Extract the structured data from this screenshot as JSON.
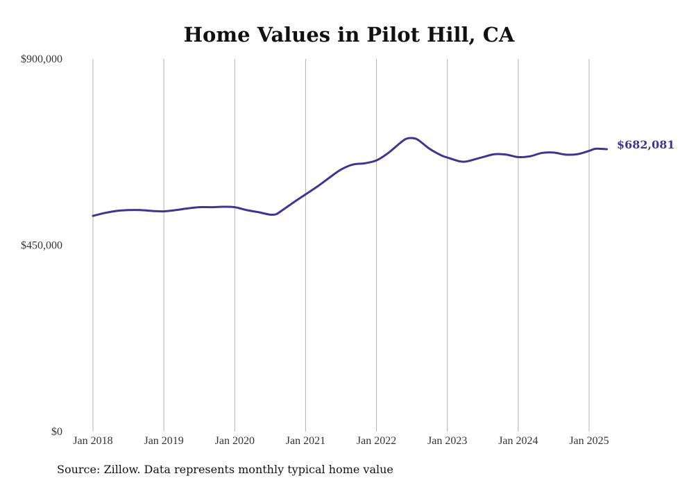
{
  "chart_data": {
    "type": "line",
    "title": "Home Values in Pilot Hill, CA",
    "xlabel": "",
    "ylabel": "",
    "ylim": [
      0,
      900000
    ],
    "y_ticks": [
      0,
      450000,
      900000
    ],
    "y_tick_labels": [
      "$0",
      "$450,000",
      "$900,000"
    ],
    "x_ticks": [
      "2018-01",
      "2019-01",
      "2020-01",
      "2021-01",
      "2022-01",
      "2023-01",
      "2024-01",
      "2025-01"
    ],
    "x_tick_labels": [
      "Jan 2018",
      "Jan 2019",
      "Jan 2020",
      "Jan 2021",
      "Jan 2022",
      "Jan 2023",
      "Jan 2024",
      "Jan 2025"
    ],
    "grid": "vertical",
    "legend": "none",
    "end_label": "$682,081",
    "series": [
      {
        "color": "#3e3591",
        "points": [
          [
            "2018-01",
            521000
          ],
          [
            "2018-03",
            528000
          ],
          [
            "2018-05",
            533000
          ],
          [
            "2018-07",
            535000
          ],
          [
            "2018-09",
            535000
          ],
          [
            "2018-11",
            533000
          ],
          [
            "2019-01",
            532000
          ],
          [
            "2019-03",
            535000
          ],
          [
            "2019-05",
            539000
          ],
          [
            "2019-07",
            542000
          ],
          [
            "2019-09",
            542000
          ],
          [
            "2019-11",
            543000
          ],
          [
            "2020-01",
            542000
          ],
          [
            "2020-03",
            535000
          ],
          [
            "2020-05",
            530000
          ],
          [
            "2020-07",
            524000
          ],
          [
            "2020-08",
            525000
          ],
          [
            "2020-09",
            534000
          ],
          [
            "2020-11",
            554000
          ],
          [
            "2021-01",
            573000
          ],
          [
            "2021-03",
            592000
          ],
          [
            "2021-05",
            613000
          ],
          [
            "2021-07",
            633000
          ],
          [
            "2021-09",
            645000
          ],
          [
            "2021-11",
            648000
          ],
          [
            "2022-01",
            655000
          ],
          [
            "2022-03",
            673000
          ],
          [
            "2022-05",
            697000
          ],
          [
            "2022-06",
            707000
          ],
          [
            "2022-07",
            709000
          ],
          [
            "2022-08",
            705000
          ],
          [
            "2022-10",
            683000
          ],
          [
            "2022-12",
            667000
          ],
          [
            "2023-01",
            662000
          ],
          [
            "2023-03",
            653000
          ],
          [
            "2023-04",
            652000
          ],
          [
            "2023-05",
            655000
          ],
          [
            "2023-07",
            663000
          ],
          [
            "2023-09",
            670000
          ],
          [
            "2023-11",
            669000
          ],
          [
            "2024-01",
            663000
          ],
          [
            "2024-03",
            665000
          ],
          [
            "2024-05",
            673000
          ],
          [
            "2024-07",
            674000
          ],
          [
            "2024-09",
            669000
          ],
          [
            "2024-11",
            670000
          ],
          [
            "2025-01",
            678000
          ],
          [
            "2025-02",
            683000
          ],
          [
            "2025-03",
            683000
          ],
          [
            "2025-04",
            682081
          ]
        ]
      }
    ]
  },
  "source": "Source: Zillow. Data represents monthly typical home value"
}
